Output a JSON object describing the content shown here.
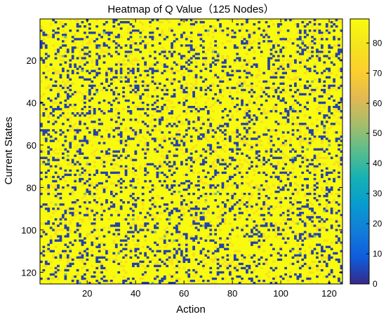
{
  "chart_data": {
    "type": "heatmap",
    "title": "Heatmap of Q Value（125 Nodes）",
    "xlabel": "Action",
    "ylabel": "Current States",
    "rows": 125,
    "cols": 125,
    "x_ticks": [
      20,
      40,
      60,
      80,
      100,
      120
    ],
    "y_ticks": [
      20,
      40,
      60,
      80,
      100,
      120
    ],
    "xlim": [
      0.5,
      125.5
    ],
    "ylim": [
      0.5,
      125.5
    ],
    "y_reversed": true,
    "colorbar": {
      "range": [
        0,
        88
      ],
      "ticks": [
        0,
        10,
        20,
        30,
        40,
        50,
        60,
        70,
        80
      ],
      "colormap": "parula"
    },
    "value_levels": {
      "dominant": 88,
      "secondary": 78,
      "low": 4,
      "rare": 48
    },
    "level_fractions": {
      "low": 0.16,
      "secondary": 0.1,
      "rare": 0.003
    },
    "colors": {
      "background": "#ffffff",
      "axes": "#000000"
    }
  }
}
